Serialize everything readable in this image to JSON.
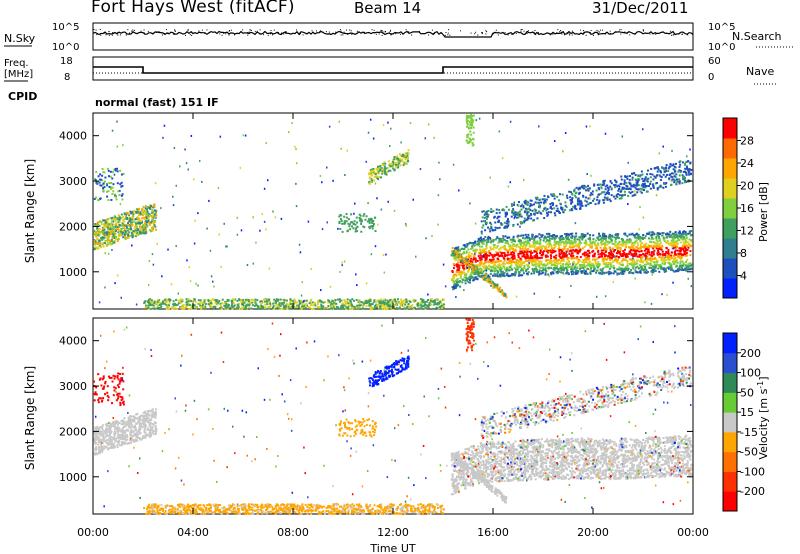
{
  "header": {
    "title": "Fort Hays West (fitACF)",
    "beam": "Beam 14",
    "date": "31/Dec/2011"
  },
  "top_panels": {
    "nsky_label": "N.Sky",
    "nsky_ticks": [
      "10^5",
      "10^0"
    ],
    "nsearch_label": "N.Search",
    "nsearch_ticks": [
      "10^5",
      "10^0"
    ],
    "freq_label_lines": [
      "Freq.",
      "[MHz]"
    ],
    "freq_ticks": [
      "18",
      "8"
    ],
    "nave_label": "Nave",
    "nave_ticks": [
      "60",
      "0"
    ],
    "cpid_label": "CPID",
    "cpid_text": "normal (fast) 151 IF",
    "freq_steps": [
      [
        0,
        14
      ],
      [
        2,
        11
      ],
      [
        14,
        14
      ],
      [
        24,
        14
      ]
    ],
    "freq_range": [
      8,
      18
    ]
  },
  "chart_data": [
    {
      "type": "heatmap",
      "name": "power",
      "ylabel": "Slant Range [km]",
      "xlabel": "",
      "xlim": [
        0,
        24
      ],
      "ylim": [
        180,
        4500
      ],
      "y_ticks": [
        1000,
        2000,
        3000,
        4000
      ],
      "colorbar": {
        "label": "Power [dB]",
        "range": [
          0,
          32
        ],
        "ticks": [
          4,
          8,
          12,
          16,
          20,
          24,
          28
        ],
        "colors": [
          "#0020ff",
          "#1e4fbf",
          "#2f7f8f",
          "#3f9f5f",
          "#7fcf3f",
          "#dfd020",
          "#ffa500",
          "#ff6a00",
          "#ff0000"
        ]
      }
    },
    {
      "type": "heatmap",
      "name": "velocity",
      "ylabel": "Slant Range [km]",
      "xlabel": "Time UT",
      "xlim": [
        0,
        24
      ],
      "ylim": [
        180,
        4500
      ],
      "y_ticks": [
        1000,
        2000,
        3000,
        4000
      ],
      "x_ticks": [
        "00:00",
        "04:00",
        "08:00",
        "12:00",
        "16:00",
        "20:00",
        "00:00"
      ],
      "colorbar": {
        "label_main": "Velocity [m s",
        "label_sup": "-1",
        "label_end": "]",
        "tick_labels": [
          "200",
          "100",
          "50",
          "15",
          "-15",
          "-50",
          "-100",
          "-200"
        ],
        "colors": [
          "#0020ff",
          "#2a4fd0",
          "#2e8b57",
          "#66cc33",
          "#c8c8c8",
          "#ffa500",
          "#ff7000",
          "#ff3000",
          "#ff0000"
        ]
      }
    }
  ]
}
